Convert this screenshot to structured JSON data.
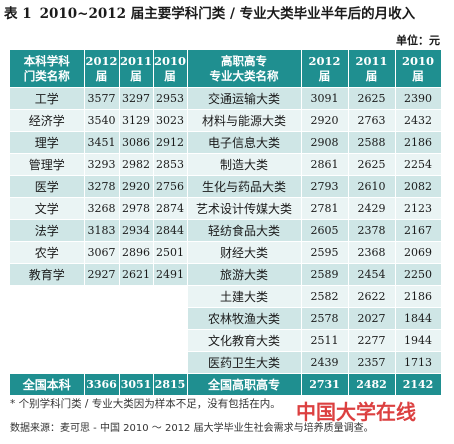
{
  "title": {
    "label": "表 1",
    "text": "2010~2012 届主要学科门类 / 专业大类毕业半年后的月收入"
  },
  "unit": "单位：元",
  "header": {
    "left_name": [
      "本科学科",
      "门类名称"
    ],
    "right_name": [
      "高职高专",
      "专业大类名称"
    ],
    "years": [
      {
        "year": "2012",
        "suffix": "届"
      },
      {
        "year": "2011",
        "suffix": "届"
      },
      {
        "year": "2010",
        "suffix": "届"
      }
    ]
  },
  "rows": [
    {
      "u_name": "工学",
      "u": [
        "3577",
        "3297",
        "2953"
      ],
      "v_name": "交通运输大类",
      "v": [
        "3091",
        "2625",
        "2390"
      ]
    },
    {
      "u_name": "经济学",
      "u": [
        "3540",
        "3129",
        "3023"
      ],
      "v_name": "材料与能源大类",
      "v": [
        "2920",
        "2763",
        "2432"
      ]
    },
    {
      "u_name": "理学",
      "u": [
        "3451",
        "3086",
        "2912"
      ],
      "v_name": "电子信息大类",
      "v": [
        "2908",
        "2588",
        "2186"
      ]
    },
    {
      "u_name": "管理学",
      "u": [
        "3293",
        "2982",
        "2853"
      ],
      "v_name": "制造大类",
      "v": [
        "2861",
        "2625",
        "2254"
      ]
    },
    {
      "u_name": "医学",
      "u": [
        "3278",
        "2920",
        "2756"
      ],
      "v_name": "生化与药品大类",
      "v": [
        "2793",
        "2610",
        "2082"
      ]
    },
    {
      "u_name": "文学",
      "u": [
        "3268",
        "2978",
        "2874"
      ],
      "v_name": "艺术设计传媒大类",
      "v": [
        "2781",
        "2429",
        "2123"
      ]
    },
    {
      "u_name": "法学",
      "u": [
        "3183",
        "2934",
        "2844"
      ],
      "v_name": "轻纺食品大类",
      "v": [
        "2605",
        "2378",
        "2167"
      ]
    },
    {
      "u_name": "农学",
      "u": [
        "3067",
        "2896",
        "2501"
      ],
      "v_name": "财经大类",
      "v": [
        "2595",
        "2368",
        "2069"
      ]
    },
    {
      "u_name": "教育学",
      "u": [
        "2927",
        "2621",
        "2491"
      ],
      "v_name": "旅游大类",
      "v": [
        "2589",
        "2454",
        "2250"
      ]
    },
    {
      "u_name": "",
      "u": [
        "",
        "",
        ""
      ],
      "v_name": "土建大类",
      "v": [
        "2582",
        "2622",
        "2186"
      ]
    },
    {
      "u_name": "",
      "u": [
        "",
        "",
        ""
      ],
      "v_name": "农林牧渔大类",
      "v": [
        "2578",
        "2027",
        "1844"
      ]
    },
    {
      "u_name": "",
      "u": [
        "",
        "",
        ""
      ],
      "v_name": "文化教育大类",
      "v": [
        "2511",
        "2277",
        "1944"
      ]
    },
    {
      "u_name": "",
      "u": [
        "",
        "",
        ""
      ],
      "v_name": "医药卫生大类",
      "v": [
        "2439",
        "2357",
        "1713"
      ]
    }
  ],
  "totals": {
    "u_name": "全国本科",
    "u": [
      "3366",
      "3051",
      "2815"
    ],
    "v_name": "全国高职高专",
    "v": [
      "2731",
      "2482",
      "2142"
    ]
  },
  "note": "* 个别学科门类 / 专业大类因为样本不足，没有包括在内。",
  "source": "数据来源：麦可思 - 中国 2010 ～ 2012 届大学毕业生社会需求与培养质量调查。",
  "watermark": "中国大学在线",
  "colors": {
    "header_bg": "#1f8f90",
    "row_dark": "#cfe6e6",
    "row_light": "#eaf4f4",
    "watermark": "#d61e1e"
  }
}
